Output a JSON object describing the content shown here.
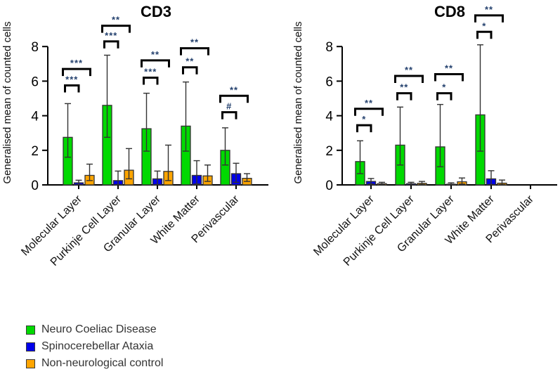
{
  "figure": {
    "background": "#ffffff",
    "axis_color": "#000000",
    "bar_outline_color": "#333333",
    "sig_label_color": "#24416e"
  },
  "legend": {
    "items": [
      {
        "label": "Neuro Coeliac Disease",
        "color": "#00d900"
      },
      {
        "label": "Spinocerebellar Ataxia",
        "color": "#0000eb"
      },
      {
        "label": "Non-neurological control",
        "color": "#ffa500"
      }
    ]
  },
  "chart_data": [
    {
      "type": "bar",
      "title": "CD3",
      "xlabel": "",
      "ylabel": "Generalised mean of counted cells",
      "ylim": [
        0,
        8
      ],
      "yticks": [
        0,
        2,
        4,
        6,
        8
      ],
      "grid": false,
      "legend_position": "bottom-left",
      "categories": [
        "Molecular Layer",
        "Purkinje Cell Layer",
        "Granular Layer",
        "White Matter",
        "Perivascular"
      ],
      "series": [
        {
          "name": "Neuro Coeliac Disease",
          "color": "#00d900",
          "values": [
            2.75,
            4.6,
            3.25,
            3.4,
            2.0
          ],
          "err_low": [
            1.6,
            2.75,
            1.95,
            1.95,
            1.15
          ],
          "err_high": [
            4.7,
            7.5,
            5.3,
            5.95,
            3.3
          ]
        },
        {
          "name": "Spinocerebellar Ataxia",
          "color": "#0000eb",
          "values": [
            0.12,
            0.25,
            0.35,
            0.55,
            0.65
          ],
          "err_low": [
            0.02,
            0.02,
            0.02,
            0.05,
            0.15
          ],
          "err_high": [
            0.27,
            0.8,
            0.8,
            1.4,
            1.25
          ]
        },
        {
          "name": "Non-neurological control",
          "color": "#ffa500",
          "values": [
            0.55,
            0.85,
            0.78,
            0.52,
            0.38
          ],
          "err_low": [
            0.25,
            0.35,
            0.25,
            0.2,
            0.2
          ],
          "err_high": [
            1.2,
            2.1,
            2.3,
            1.15,
            0.65
          ]
        }
      ],
      "significance": [
        {
          "group": 0,
          "inner": {
            "label": "***",
            "y": 5.75
          },
          "outer": {
            "label": "***",
            "y": 6.7
          }
        },
        {
          "group": 1,
          "inner": {
            "label": "***",
            "y": 8.3
          },
          "outer": {
            "label": "**",
            "y": 9.2
          }
        },
        {
          "group": 2,
          "inner": {
            "label": "***",
            "y": 6.2
          },
          "outer": {
            "label": "**",
            "y": 7.2
          }
        },
        {
          "group": 3,
          "inner": {
            "label": "**",
            "y": 6.8
          },
          "outer": {
            "label": "**",
            "y": 7.9
          }
        },
        {
          "group": 4,
          "inner": {
            "label": "#",
            "y": 4.2
          },
          "outer": {
            "label": "**",
            "y": 5.15
          }
        }
      ]
    },
    {
      "type": "bar",
      "title": "CD8",
      "xlabel": "",
      "ylabel": "Generalised mean of counted cells",
      "ylim": [
        0,
        8
      ],
      "yticks": [
        0,
        2,
        4,
        6,
        8
      ],
      "grid": false,
      "legend_position": "bottom-left",
      "categories": [
        "Molecular Layer",
        "Purkinje Cell Layer",
        "Granular Layer",
        "White Matter",
        "Perivascular"
      ],
      "series": [
        {
          "name": "Neuro Coeliac Disease",
          "color": "#00d900",
          "values": [
            1.35,
            2.3,
            2.2,
            4.05,
            null
          ],
          "err_low": [
            0.65,
            1.15,
            1.05,
            1.95,
            null
          ],
          "err_high": [
            2.55,
            4.5,
            4.65,
            8.1,
            null
          ]
        },
        {
          "name": "Spinocerebellar Ataxia",
          "color": "#0000eb",
          "values": [
            0.2,
            0.07,
            0.04,
            0.35,
            null
          ],
          "err_low": [
            0.05,
            0.01,
            0.01,
            0.02,
            null
          ],
          "err_high": [
            0.37,
            0.15,
            0.12,
            0.82,
            null
          ]
        },
        {
          "name": "Non-neurological control",
          "color": "#ffa500",
          "values": [
            0.07,
            0.09,
            0.18,
            0.1,
            null
          ],
          "err_low": [
            0.02,
            0.02,
            0.05,
            0.02,
            null
          ],
          "err_high": [
            0.15,
            0.2,
            0.4,
            0.28,
            null
          ]
        }
      ],
      "significance": [
        {
          "group": 0,
          "inner": {
            "label": "*",
            "y": 3.45
          },
          "outer": {
            "label": "**",
            "y": 4.4
          }
        },
        {
          "group": 1,
          "inner": {
            "label": "**",
            "y": 5.3
          },
          "outer": {
            "label": "**",
            "y": 6.3
          }
        },
        {
          "group": 2,
          "inner": {
            "label": "*",
            "y": 5.3
          },
          "outer": {
            "label": "**",
            "y": 6.4
          }
        },
        {
          "group": 3,
          "inner": {
            "label": "*",
            "y": 8.85
          },
          "outer": {
            "label": "**",
            "y": 9.8
          }
        }
      ]
    }
  ]
}
